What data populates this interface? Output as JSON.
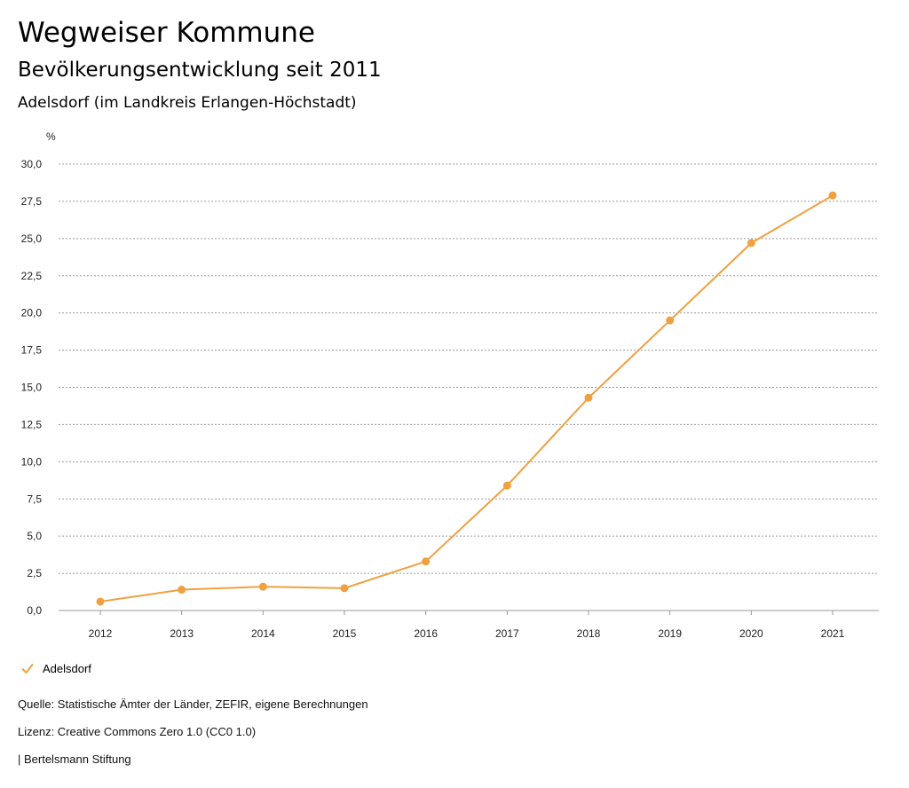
{
  "header": {
    "title": "Wegweiser Kommune",
    "subtitle": "Bevölkerungsentwicklung seit 2011",
    "region": "Adelsdorf (im Landkreis Erlangen-Höchstadt)"
  },
  "chart_data": {
    "type": "line",
    "ylabel": "%",
    "x": [
      "2012",
      "2013",
      "2014",
      "2015",
      "2016",
      "2017",
      "2018",
      "2019",
      "2020",
      "2021"
    ],
    "y_ticks": [
      "0,0",
      "2,5",
      "5,0",
      "7,5",
      "10,0",
      "12,5",
      "15,0",
      "17,5",
      "20,0",
      "22,5",
      "25,0",
      "27,5",
      "30,0"
    ],
    "ylim": [
      0,
      30
    ],
    "grid": true,
    "legend_placement": "bottom-left",
    "series": [
      {
        "name": "Adelsdorf",
        "color": "#f0a040",
        "values": [
          0.6,
          1.4,
          1.6,
          1.5,
          3.3,
          8.4,
          14.3,
          19.5,
          24.7,
          27.9
        ]
      }
    ]
  },
  "legend": {
    "label": "Adelsdorf"
  },
  "footer": {
    "source": "Quelle: Statistische Ämter der Länder, ZEFIR, eigene Berechnungen",
    "license": "Lizenz: Creative Commons Zero 1.0 (CC0 1.0)",
    "publisher": "| Bertelsmann Stiftung"
  }
}
